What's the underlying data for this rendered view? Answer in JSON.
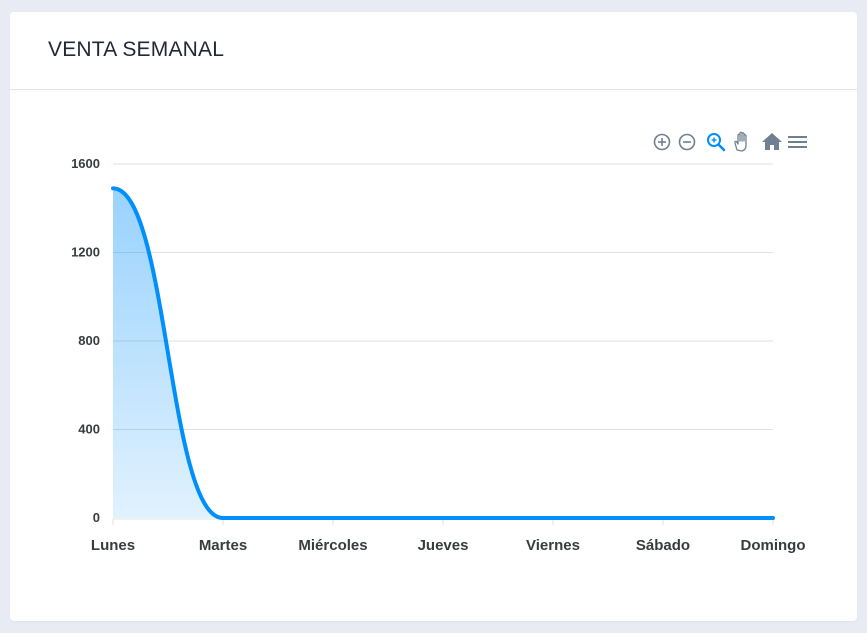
{
  "card": {
    "title": "VENTA SEMANAL"
  },
  "colors": {
    "series": "#008ffb",
    "grid": "#e0e0e0",
    "text": "#373d3f",
    "toolbar": "#6e8192",
    "toolbar_active": "#008ffb"
  },
  "toolbar": {
    "items": [
      {
        "name": "zoom-in-icon",
        "active": false
      },
      {
        "name": "zoom-out-icon",
        "active": false
      },
      {
        "name": "selection-zoom-icon",
        "active": true
      },
      {
        "name": "pan-hand-icon",
        "active": false
      },
      {
        "name": "reset-home-icon",
        "active": false
      },
      {
        "name": "menu-icon",
        "active": false
      }
    ]
  },
  "chart_data": {
    "type": "area",
    "categories": [
      "Lunes",
      "Martes",
      "Miércoles",
      "Jueves",
      "Viernes",
      "Sábado",
      "Domingo"
    ],
    "series": [
      {
        "values": [
          1490,
          0,
          0,
          0,
          0,
          0,
          0
        ]
      }
    ],
    "ylim": [
      0,
      1600
    ],
    "yticks": [
      0,
      400,
      800,
      1200,
      1600
    ],
    "grid": true,
    "legend": "none"
  }
}
